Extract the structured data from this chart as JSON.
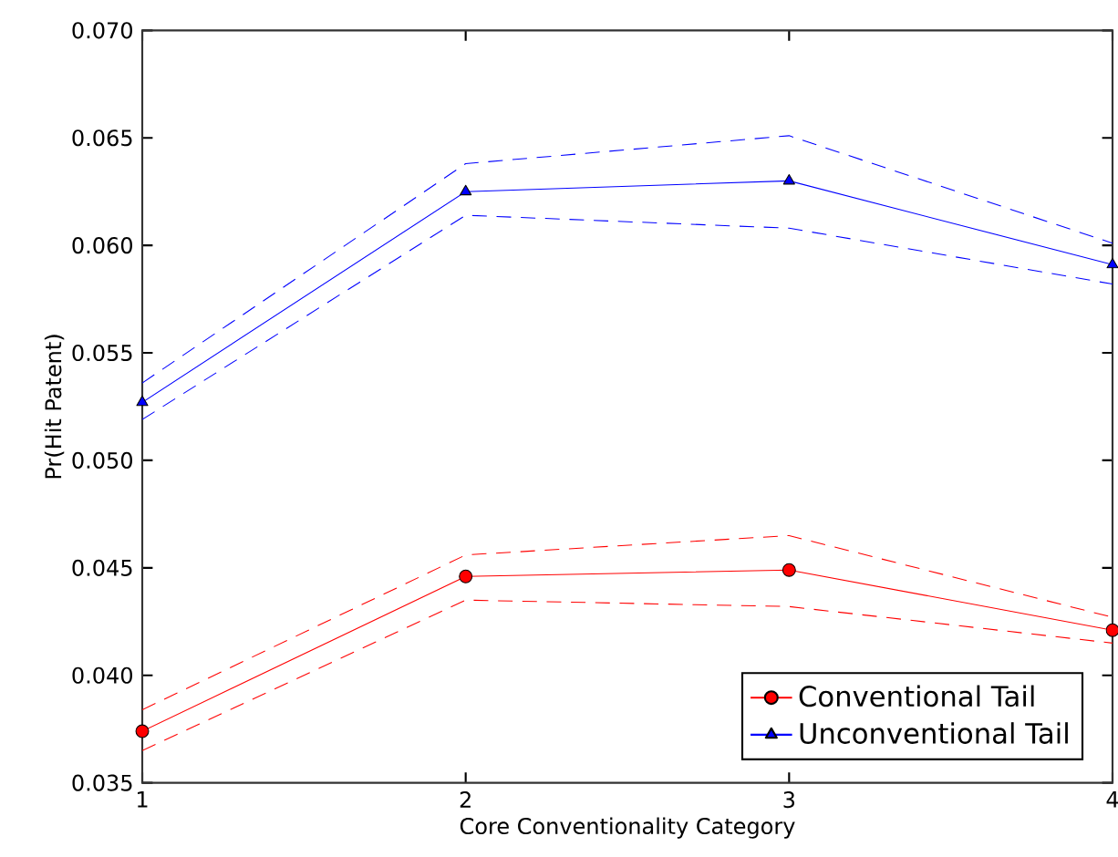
{
  "chart_data": {
    "type": "line",
    "xlabel": "Core Conventionality Category",
    "ylabel": "Pr(Hit Patent)",
    "x": [
      1,
      2,
      3,
      4
    ],
    "xlim": [
      1,
      4
    ],
    "xticks": [
      1,
      2,
      3,
      4
    ],
    "ylim": [
      0.035,
      0.07
    ],
    "yticks": [
      {
        "value": 0.035,
        "label": "0.035"
      },
      {
        "value": 0.04,
        "label": "0.040"
      },
      {
        "value": 0.045,
        "label": "0.045"
      },
      {
        "value": 0.05,
        "label": "0.050"
      },
      {
        "value": 0.055,
        "label": "0.055"
      },
      {
        "value": 0.06,
        "label": "0.060"
      },
      {
        "value": 0.065,
        "label": "0.065"
      },
      {
        "value": 0.07,
        "label": "0.070"
      }
    ],
    "legend": "bottom right",
    "grid": false,
    "series": [
      {
        "name": "Conventional Tail",
        "color": "#ff0000",
        "marker": "circle",
        "values": [
          0.0374,
          0.0446,
          0.0449,
          0.0421
        ]
      },
      {
        "name": "Unconventional Tail",
        "color": "#0000ff",
        "marker": "triangle",
        "values": [
          0.0527,
          0.0625,
          0.063,
          0.0591
        ]
      },
      {
        "color": "#ff0000",
        "line_style": "dashed",
        "marker": "none",
        "values": [
          0.0365,
          0.0435,
          0.0432,
          0.0415
        ]
      },
      {
        "color": "#ff0000",
        "line_style": "dashed",
        "marker": "none",
        "values": [
          0.0384,
          0.0456,
          0.0465,
          0.0427
        ]
      },
      {
        "color": "#0000ff",
        "line_style": "dashed",
        "marker": "none",
        "values": [
          0.0519,
          0.0614,
          0.0608,
          0.0582
        ]
      },
      {
        "color": "#0000ff",
        "line_style": "dashed",
        "marker": "none",
        "values": [
          0.0536,
          0.0638,
          0.0651,
          0.0601
        ]
      }
    ]
  }
}
